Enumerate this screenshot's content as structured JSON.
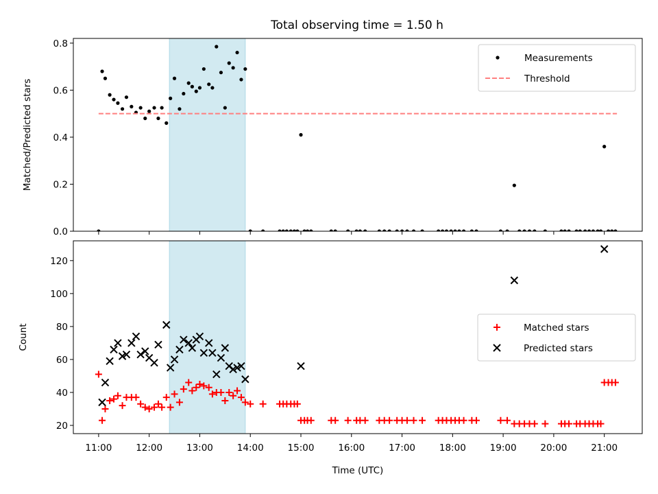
{
  "figure": {
    "title": "Total observing time = 1.50 h"
  },
  "chart_data": [
    {
      "type": "scatter",
      "ylabel": "Matched/Predicted stars",
      "xlabel": "",
      "xlim": [
        10.5,
        21.75
      ],
      "ylim": [
        0,
        0.82
      ],
      "yticks": [
        0,
        0.2,
        0.4,
        0.6,
        0.8
      ],
      "yticklabels": [
        "0.0",
        "0.2",
        "0.4",
        "0.6",
        "0.8"
      ],
      "shaded_interval": [
        12.4,
        13.9
      ],
      "shade_color": "#add8e6",
      "legend_position": "upper right",
      "grid": false,
      "series": [
        {
          "name": "Measurements",
          "marker": "dot",
          "color": "#000000",
          "x": [
            11.0,
            11.07,
            11.13,
            11.22,
            11.3,
            11.38,
            11.47,
            11.55,
            11.65,
            11.74,
            11.83,
            11.92,
            12.0,
            12.1,
            12.18,
            12.25,
            12.34,
            12.42,
            12.5,
            12.6,
            12.68,
            12.78,
            12.85,
            12.93,
            13.0,
            13.08,
            13.18,
            13.25,
            13.33,
            13.42,
            13.5,
            13.58,
            13.66,
            13.74,
            13.82,
            13.9,
            14.0,
            14.25,
            14.58,
            14.65,
            14.72,
            14.8,
            14.87,
            14.93,
            15.0,
            15.07,
            15.13,
            15.2,
            15.6,
            15.68,
            15.93,
            16.1,
            16.17,
            16.27,
            16.55,
            16.65,
            16.75,
            16.9,
            17.0,
            17.1,
            17.23,
            17.4,
            17.72,
            17.8,
            17.88,
            17.97,
            18.05,
            18.13,
            18.22,
            18.38,
            18.47,
            18.95,
            19.08,
            19.22,
            19.32,
            19.42,
            19.52,
            19.62,
            19.83,
            20.15,
            20.22,
            20.3,
            20.45,
            20.52,
            20.62,
            20.7,
            20.78,
            20.87,
            20.93,
            21.0,
            21.08,
            21.15,
            21.22
          ],
          "y": [
            0.0,
            0.68,
            0.65,
            0.58,
            0.56,
            0.545,
            0.52,
            0.57,
            0.53,
            0.505,
            0.525,
            0.48,
            0.51,
            0.525,
            0.48,
            0.525,
            0.46,
            0.565,
            0.65,
            0.52,
            0.585,
            0.63,
            0.615,
            0.595,
            0.61,
            0.69,
            0.625,
            0.61,
            0.785,
            0.675,
            0.525,
            0.715,
            0.695,
            0.76,
            0.645,
            0.69,
            0.0,
            0.0,
            0.0,
            0.0,
            0.0,
            0.0,
            0.0,
            0.0,
            0.41,
            0.0,
            0.0,
            0.0,
            0.0,
            0.0,
            0.0,
            0.0,
            0.0,
            0.0,
            0.0,
            0.0,
            0.0,
            0.0,
            0.0,
            0.0,
            0.0,
            0.0,
            0.0,
            0.0,
            0.0,
            0.0,
            0.0,
            0.0,
            0.0,
            0.0,
            0.0,
            0.0,
            0.0,
            0.195,
            0.0,
            0.0,
            0.0,
            0.0,
            0.0,
            0.0,
            0.0,
            0.0,
            0.0,
            0.0,
            0.0,
            0.0,
            0.0,
            0.0,
            0.0,
            0.36,
            0.0,
            0.0,
            0.0
          ]
        },
        {
          "name": "Threshold",
          "marker": "dashed-line",
          "color": "#ff7f7f",
          "x": [
            11.0,
            21.25
          ],
          "y": [
            0.5,
            0.5
          ]
        }
      ]
    },
    {
      "type": "scatter",
      "ylabel": "Count",
      "xlabel": "Time (UTC)",
      "xlim": [
        10.5,
        21.75
      ],
      "ylim": [
        15,
        132
      ],
      "yticks": [
        20,
        40,
        60,
        80,
        100,
        120
      ],
      "yticklabels": [
        "20",
        "40",
        "60",
        "80",
        "100",
        "120"
      ],
      "xticks": [
        11,
        12,
        13,
        14,
        15,
        16,
        17,
        18,
        19,
        20,
        21
      ],
      "xticklabels": [
        "11:00",
        "12:00",
        "13:00",
        "14:00",
        "15:00",
        "16:00",
        "17:00",
        "18:00",
        "19:00",
        "20:00",
        "21:00"
      ],
      "shaded_interval": [
        12.4,
        13.9
      ],
      "shade_color": "#add8e6",
      "legend_position": "center right",
      "grid": false,
      "series": [
        {
          "name": "Matched stars",
          "marker": "plus",
          "color": "#ff0000",
          "x": [
            11.0,
            11.07,
            11.13,
            11.22,
            11.3,
            11.38,
            11.47,
            11.55,
            11.65,
            11.74,
            11.83,
            11.92,
            12.0,
            12.1,
            12.18,
            12.25,
            12.34,
            12.42,
            12.5,
            12.6,
            12.68,
            12.78,
            12.85,
            12.93,
            13.0,
            13.08,
            13.18,
            13.25,
            13.33,
            13.42,
            13.5,
            13.58,
            13.66,
            13.74,
            13.82,
            13.9,
            14.0,
            14.25,
            14.58,
            14.65,
            14.72,
            14.8,
            14.87,
            14.93,
            15.0,
            15.07,
            15.13,
            15.2,
            15.6,
            15.68,
            15.93,
            16.1,
            16.17,
            16.27,
            16.55,
            16.65,
            16.75,
            16.9,
            17.0,
            17.1,
            17.23,
            17.4,
            17.72,
            17.8,
            17.88,
            17.97,
            18.05,
            18.13,
            18.22,
            18.38,
            18.47,
            18.95,
            19.08,
            19.22,
            19.32,
            19.42,
            19.52,
            19.62,
            19.83,
            20.15,
            20.22,
            20.3,
            20.45,
            20.52,
            20.62,
            20.7,
            20.78,
            20.87,
            20.93,
            21.0,
            21.08,
            21.15,
            21.22
          ],
          "y": [
            51,
            23,
            30,
            35,
            36,
            38,
            32,
            37,
            37,
            37,
            33,
            31,
            30,
            31,
            33,
            31,
            37,
            31,
            39,
            34,
            42,
            46,
            41,
            43,
            45,
            44,
            43,
            39,
            40,
            40,
            35,
            40,
            38,
            41,
            37,
            34,
            33,
            33,
            33,
            33,
            33,
            33,
            33,
            33,
            23,
            23,
            23,
            23,
            23,
            23,
            23,
            23,
            23,
            23,
            23,
            23,
            23,
            23,
            23,
            23,
            23,
            23,
            23,
            23,
            23,
            23,
            23,
            23,
            23,
            23,
            23,
            23,
            23,
            21,
            21,
            21,
            21,
            21,
            21,
            21,
            21,
            21,
            21,
            21,
            21,
            21,
            21,
            21,
            21,
            46,
            46,
            46,
            46
          ]
        },
        {
          "name": "Predicted stars",
          "marker": "x",
          "color": "#000000",
          "x": [
            11.07,
            11.13,
            11.22,
            11.3,
            11.38,
            11.47,
            11.55,
            11.65,
            11.74,
            11.83,
            11.92,
            12.0,
            12.1,
            12.18,
            12.34,
            12.42,
            12.5,
            12.6,
            12.68,
            12.78,
            12.85,
            12.93,
            13.0,
            13.08,
            13.18,
            13.25,
            13.33,
            13.42,
            13.5,
            13.58,
            13.66,
            13.74,
            13.82,
            13.9,
            15.0,
            19.22,
            21.0
          ],
          "y": [
            34,
            46,
            59,
            66,
            70,
            62,
            63,
            70,
            74,
            63,
            65,
            61,
            58,
            69,
            81,
            55,
            60,
            66,
            72,
            70,
            67,
            72,
            74,
            64,
            70,
            64,
            51,
            61,
            67,
            56,
            54,
            55,
            56,
            48,
            56,
            108,
            127
          ]
        }
      ]
    }
  ]
}
